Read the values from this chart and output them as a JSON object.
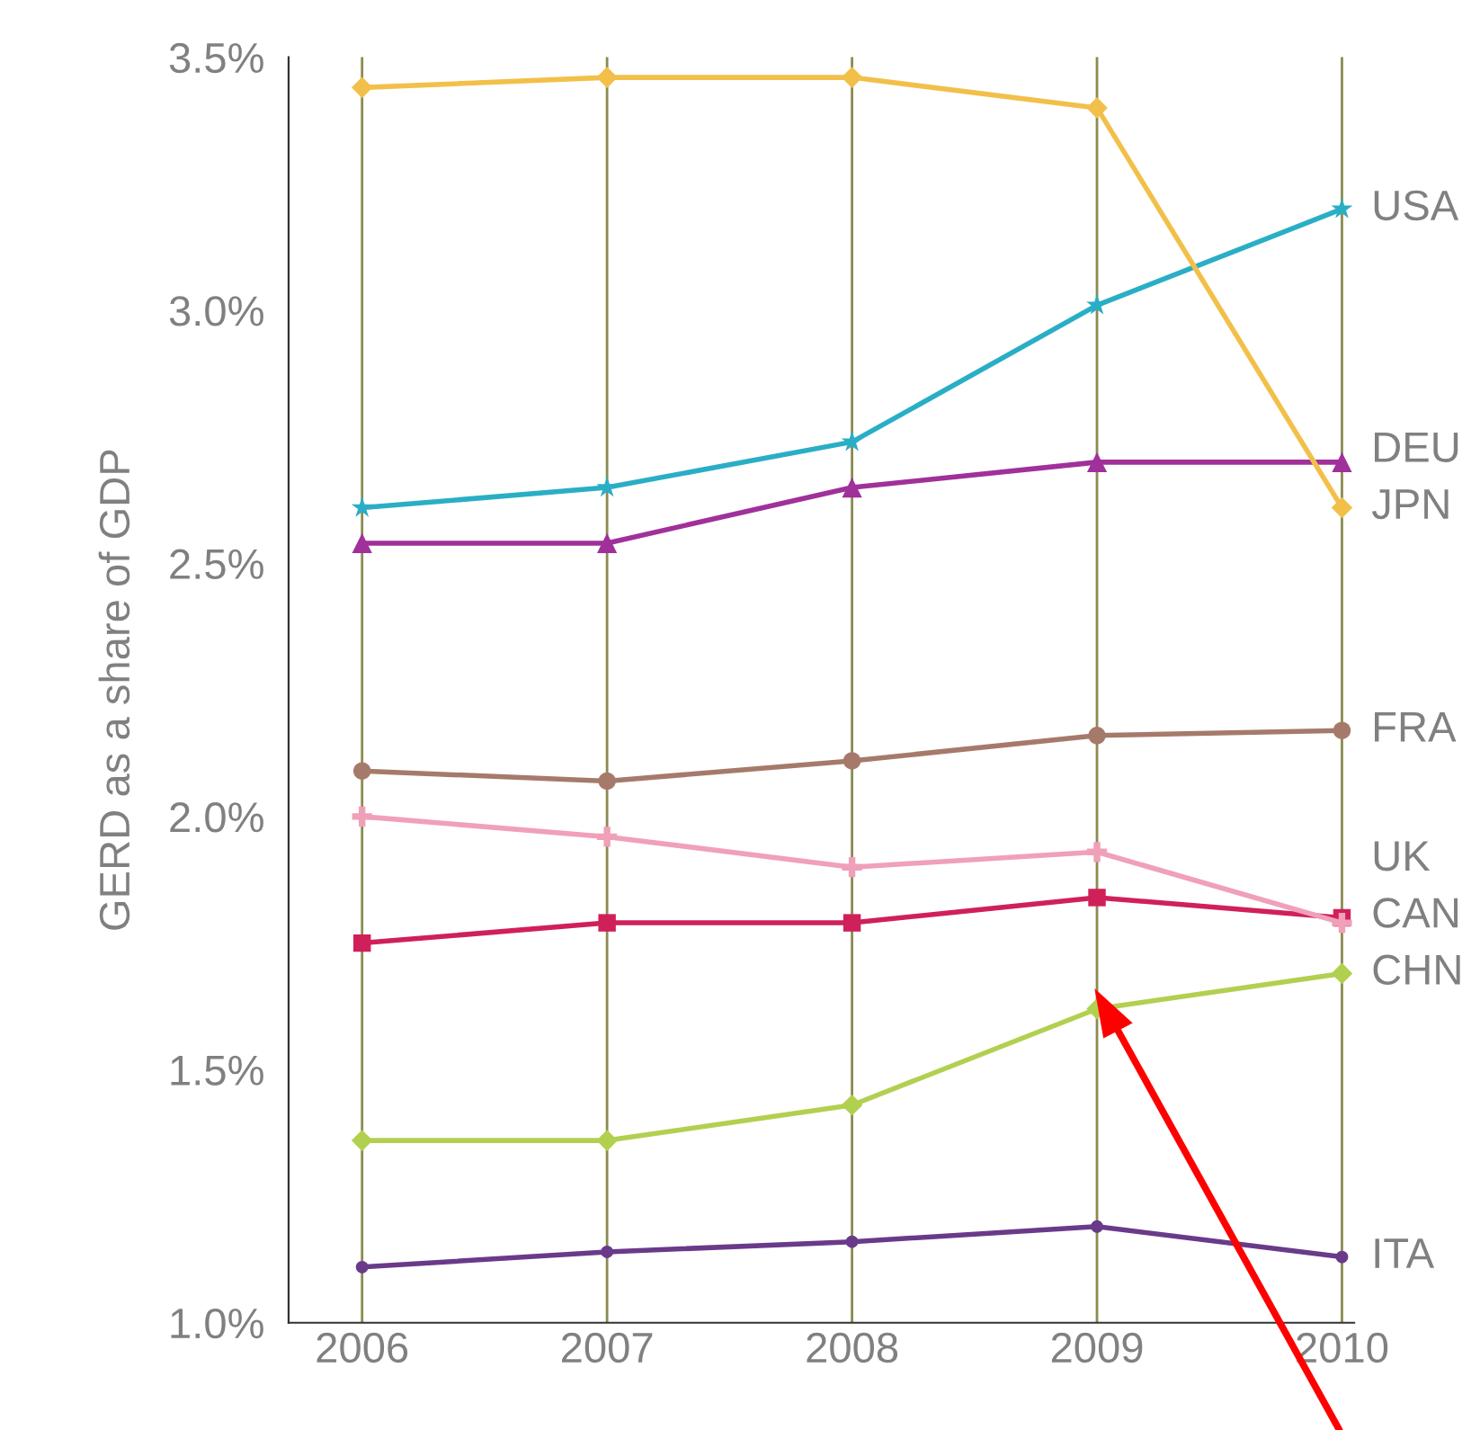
{
  "chart_data": {
    "type": "line",
    "ylabel": "GERD as a share of GDP",
    "categories": [
      "2006",
      "2007",
      "2008",
      "2009",
      "2010"
    ],
    "series": [
      {
        "name": "JPN",
        "color": "#f2c04a",
        "marker": "diamond",
        "values": [
          3.44,
          3.46,
          3.46,
          3.4,
          2.61
        ]
      },
      {
        "name": "USA",
        "color": "#2aaec6",
        "marker": "star",
        "values": [
          2.61,
          2.65,
          2.74,
          3.01,
          3.2
        ]
      },
      {
        "name": "DEU",
        "color": "#a0309a",
        "marker": "triangle",
        "values": [
          2.54,
          2.54,
          2.65,
          2.7,
          2.7
        ]
      },
      {
        "name": "FRA",
        "color": "#a67a6a",
        "marker": "circle",
        "values": [
          2.09,
          2.07,
          2.11,
          2.16,
          2.17
        ]
      },
      {
        "name": "CAN",
        "color": "#f0a0b8",
        "marker": "cross",
        "values": [
          2.0,
          1.96,
          1.9,
          1.93,
          1.79
        ]
      },
      {
        "name": "UK",
        "color": "#d0205a",
        "marker": "square",
        "values": [
          1.75,
          1.79,
          1.79,
          1.84,
          1.8
        ]
      },
      {
        "name": "CHN",
        "color": "#b2d050",
        "marker": "diamond",
        "values": [
          1.36,
          1.36,
          1.43,
          1.62,
          1.69
        ]
      },
      {
        "name": "ITA",
        "color": "#6a3a8a",
        "marker": "circle",
        "values": [
          1.11,
          1.14,
          1.16,
          1.19,
          1.13
        ]
      }
    ],
    "ylim": [
      1.0,
      3.5
    ],
    "yticks": [
      {
        "value": 1.0,
        "label": "1.0%"
      },
      {
        "value": 1.5,
        "label": "1.5%"
      },
      {
        "value": 2.0,
        "label": "2.0%"
      },
      {
        "value": 2.5,
        "label": "2.5%"
      },
      {
        "value": 3.0,
        "label": "3.0%"
      },
      {
        "value": 3.5,
        "label": "3.5%"
      }
    ],
    "grid": "x",
    "legend": false
  }
}
